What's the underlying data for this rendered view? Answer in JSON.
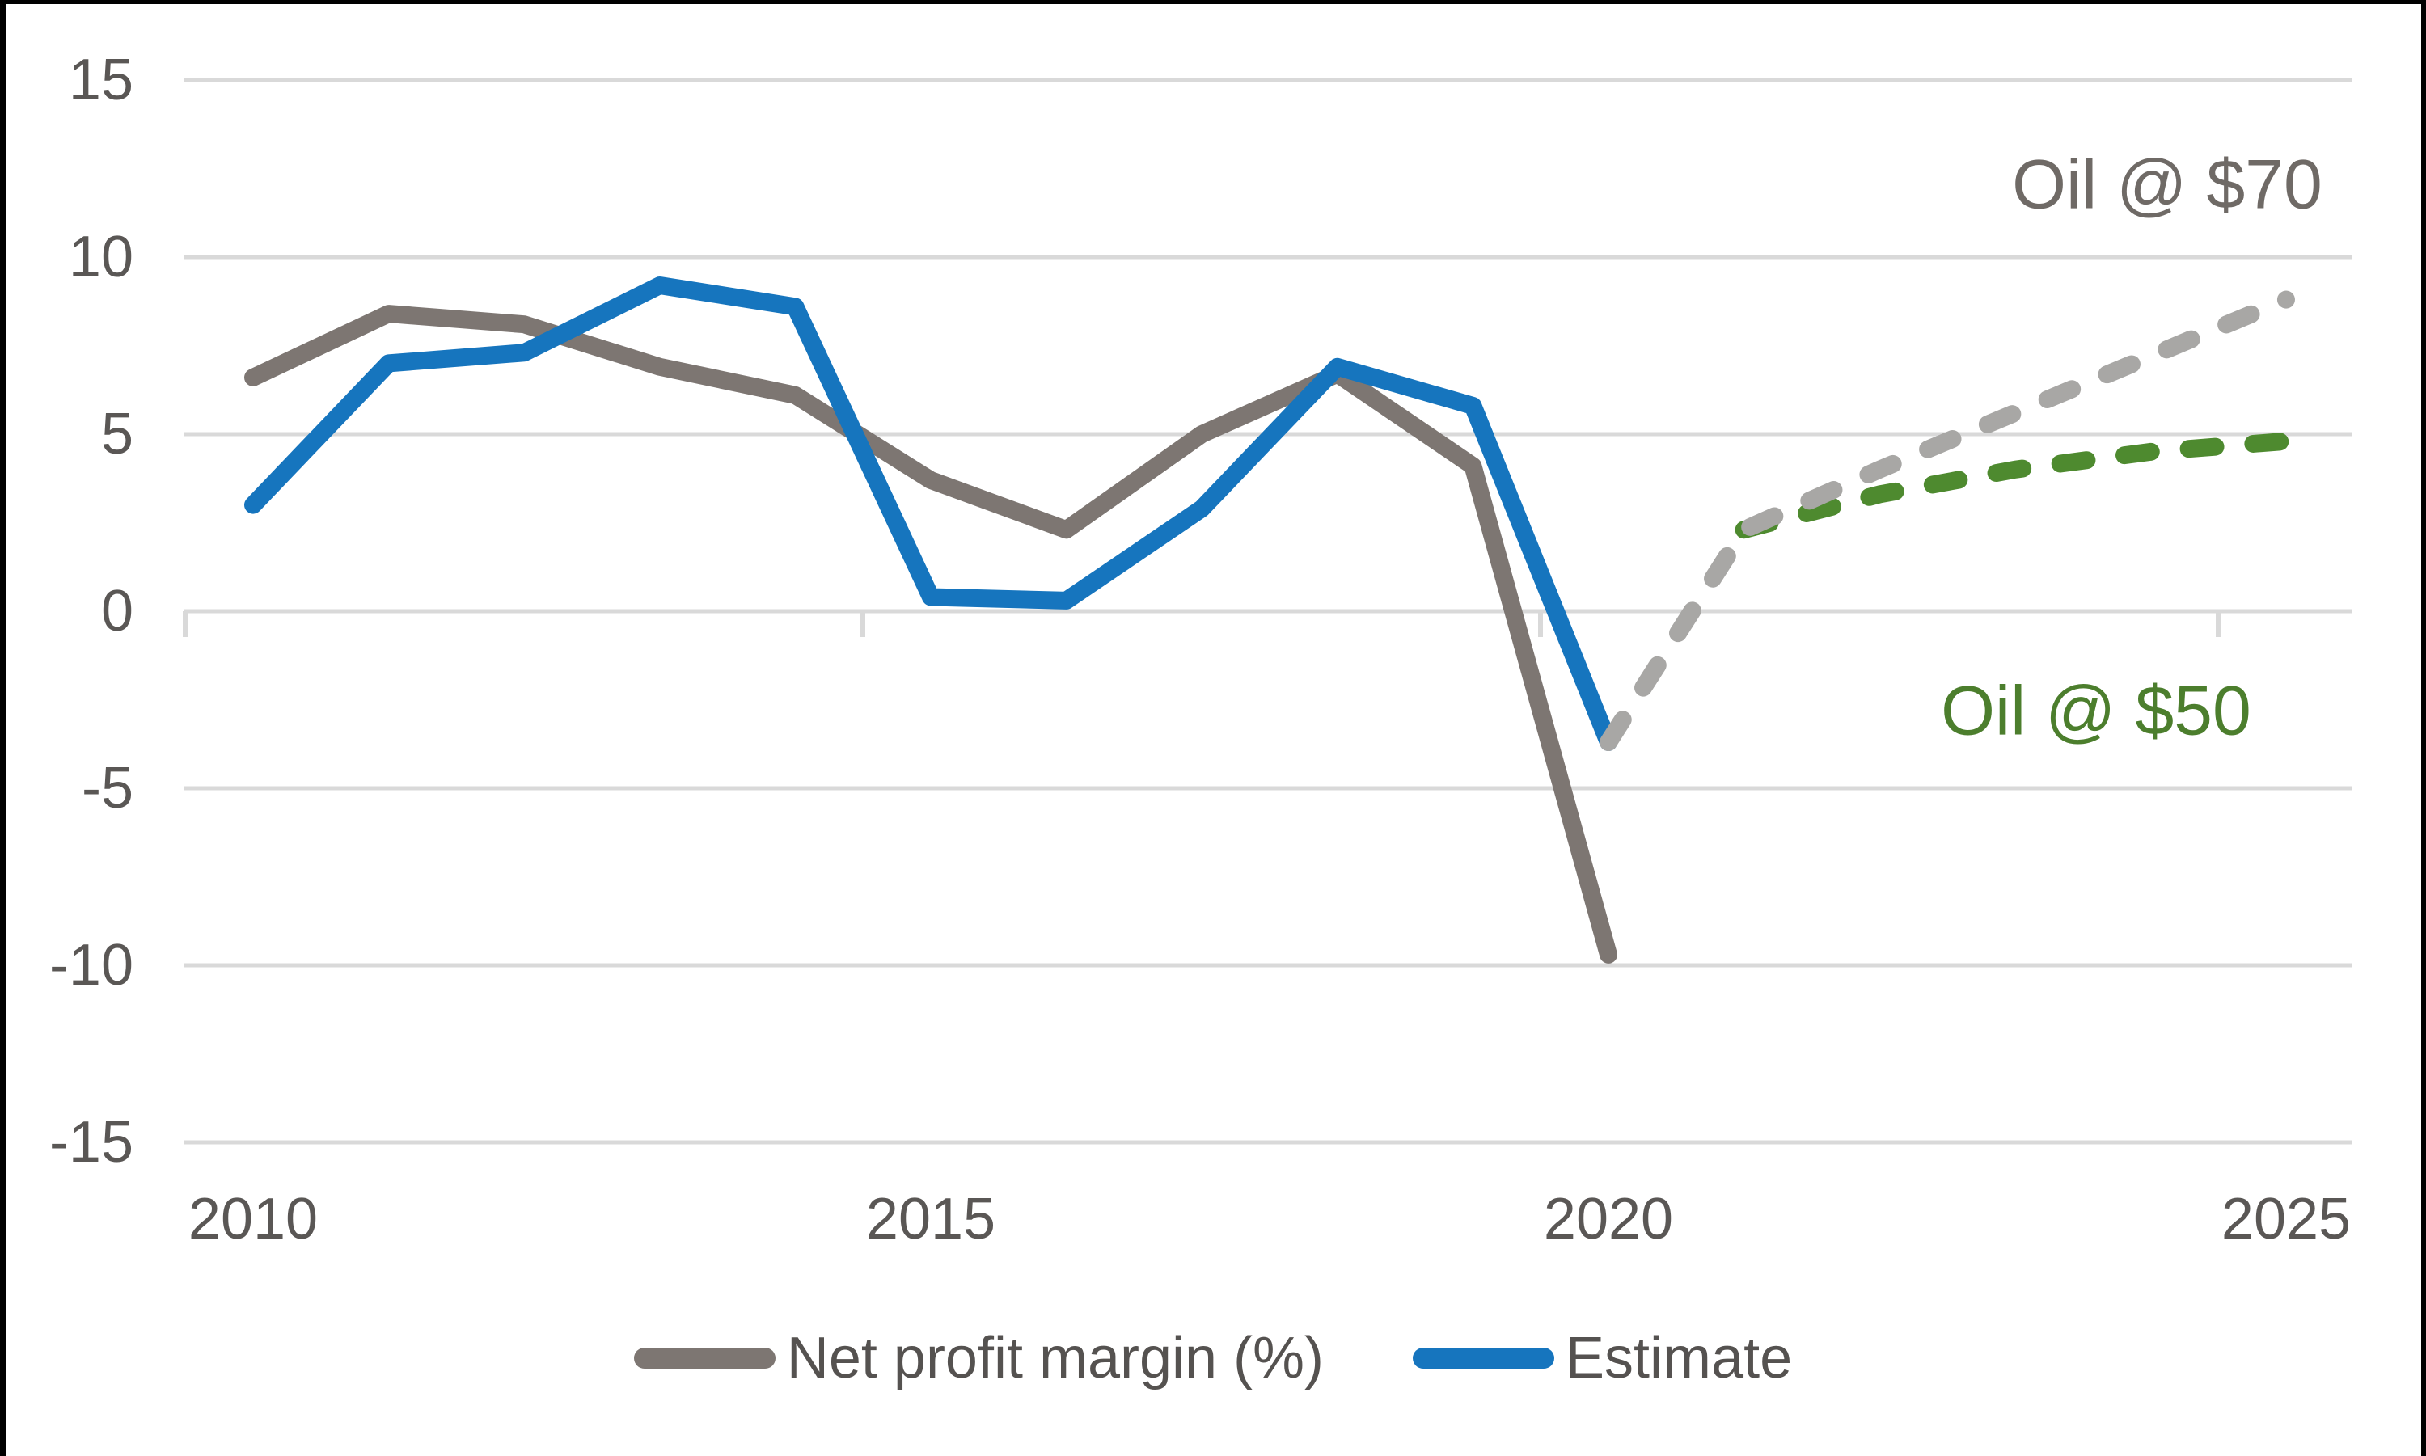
{
  "chart_data": {
    "type": "line",
    "title": "",
    "grid": "horizontal",
    "legend_position": "bottom",
    "x_axis": {
      "tick_labels": [
        "2010",
        "2015",
        "2020",
        "2025"
      ],
      "range_years": [
        2010,
        2025
      ]
    },
    "y_axis": {
      "tick_labels": [
        "15",
        "10",
        "5",
        "0",
        "-5",
        "-10",
        "-15"
      ],
      "min": -15,
      "max": 15,
      "step": 5
    },
    "series": [
      {
        "name": "Net profit margin (%)",
        "style": "solid",
        "color": "#7D7672",
        "x": [
          2010,
          2011,
          2012,
          2013,
          2014,
          2015,
          2016,
          2017,
          2018,
          2019,
          2020
        ],
        "values": [
          6.6,
          8.4,
          8.1,
          6.9,
          6.1,
          3.7,
          2.3,
          5.0,
          6.7,
          4.1,
          -9.7
        ]
      },
      {
        "name": "Estimate",
        "style": "solid",
        "color": "#1675BE",
        "x": [
          2010,
          2011,
          2012,
          2013,
          2014,
          2015,
          2016,
          2017,
          2018,
          2019,
          2020
        ],
        "values": [
          3.0,
          7.0,
          7.3,
          9.2,
          8.6,
          0.4,
          0.3,
          2.9,
          6.9,
          5.8,
          -3.7
        ]
      },
      {
        "name": "Oil @ $70",
        "style": "dashed",
        "color": "#A8A7A5",
        "x": [
          2020,
          2021,
          2022,
          2023,
          2024,
          2025
        ],
        "values": [
          -3.7,
          2.3,
          4.0,
          5.6,
          7.2,
          8.8
        ]
      },
      {
        "name": "Oil @ $50",
        "style": "dashed",
        "color": "#4E8A2F",
        "x": [
          2021,
          2022,
          2023,
          2024,
          2025
        ],
        "values": [
          2.3,
          3.3,
          4.0,
          4.5,
          4.8
        ]
      }
    ],
    "annotations": [
      {
        "text": "Oil @ $70",
        "color": "#6F6A66"
      },
      {
        "text": "Oil @ $50",
        "color": "#4C7E2D"
      }
    ],
    "legend": [
      {
        "label": "Net profit margin (%)",
        "color": "#7D7672"
      },
      {
        "label": "Estimate",
        "color": "#1675BE"
      }
    ],
    "colors": {
      "gridline": "#D9D9D9",
      "axis_text": "#5A5755"
    }
  }
}
